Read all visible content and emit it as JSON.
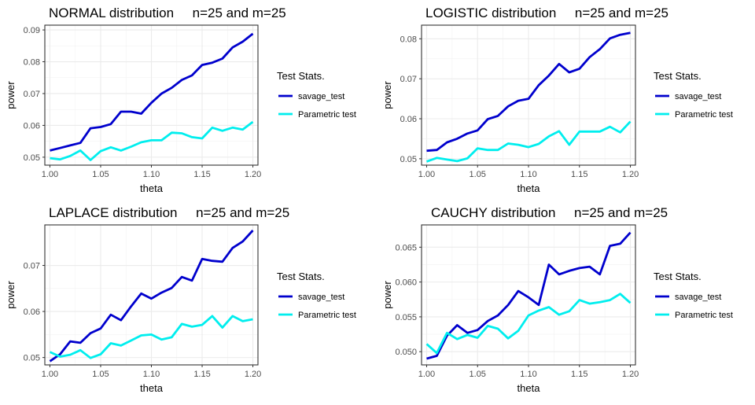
{
  "chart_data": [
    {
      "type": "line",
      "title": "NORMAL distribution     n=25 and m=25",
      "xlabel": "theta",
      "ylabel": "power",
      "xlim": [
        0.995,
        1.205
      ],
      "ylim": [
        0.0475,
        0.0915
      ],
      "xticks": [
        "1.00",
        "1.05",
        "1.10",
        "1.15",
        "1.20"
      ],
      "xtick_values": [
        1.0,
        1.05,
        1.1,
        1.15,
        1.2
      ],
      "yticks": [
        "0.05",
        "0.06",
        "0.07",
        "0.08",
        "0.09"
      ],
      "ytick_values": [
        0.05,
        0.06,
        0.07,
        0.08,
        0.09
      ],
      "grid": true,
      "legend_title": "Test Stats.",
      "legend_position": "right",
      "x": [
        1.0,
        1.01,
        1.02,
        1.03,
        1.04,
        1.05,
        1.06,
        1.07,
        1.08,
        1.09,
        1.1,
        1.11,
        1.12,
        1.13,
        1.14,
        1.15,
        1.16,
        1.17,
        1.18,
        1.19,
        1.2
      ],
      "series": [
        {
          "name": "savage_test",
          "color": "#0000CD",
          "values": [
            0.0521,
            0.0529,
            0.0537,
            0.0545,
            0.0591,
            0.0595,
            0.0604,
            0.0643,
            0.0643,
            0.0637,
            0.0671,
            0.07,
            0.0718,
            0.0743,
            0.0757,
            0.079,
            0.0797,
            0.081,
            0.0845,
            0.0863,
            0.0888
          ]
        },
        {
          "name": "Parametric test",
          "color": "#00EEEE",
          "values": [
            0.0497,
            0.0493,
            0.0504,
            0.0521,
            0.0491,
            0.0519,
            0.0531,
            0.0521,
            0.0533,
            0.0547,
            0.0553,
            0.0553,
            0.0577,
            0.0575,
            0.0563,
            0.0559,
            0.0593,
            0.0583,
            0.0593,
            0.0587,
            0.0611
          ]
        }
      ]
    },
    {
      "type": "line",
      "title": "LOGISTIC distribution     n=25 and m=25",
      "xlabel": "theta",
      "ylabel": "power",
      "xlim": [
        0.995,
        1.205
      ],
      "ylim": [
        0.0484,
        0.0834
      ],
      "xticks": [
        "1.00",
        "1.05",
        "1.10",
        "1.15",
        "1.20"
      ],
      "xtick_values": [
        1.0,
        1.05,
        1.1,
        1.15,
        1.2
      ],
      "yticks": [
        "0.05",
        "0.06",
        "0.07",
        "0.08"
      ],
      "ytick_values": [
        0.05,
        0.06,
        0.07,
        0.08
      ],
      "grid": true,
      "legend_title": "Test Stats.",
      "legend_position": "right",
      "x": [
        1.0,
        1.01,
        1.02,
        1.03,
        1.04,
        1.05,
        1.06,
        1.07,
        1.08,
        1.09,
        1.1,
        1.11,
        1.12,
        1.13,
        1.14,
        1.15,
        1.16,
        1.17,
        1.18,
        1.19,
        1.2
      ],
      "series": [
        {
          "name": "savage_test",
          "color": "#0000CD",
          "values": [
            0.052,
            0.0522,
            0.0541,
            0.055,
            0.0563,
            0.0571,
            0.0599,
            0.0607,
            0.0631,
            0.0645,
            0.065,
            0.0684,
            0.0708,
            0.0737,
            0.0716,
            0.0725,
            0.0754,
            0.0774,
            0.0801,
            0.081,
            0.0815
          ]
        },
        {
          "name": "Parametric test",
          "color": "#00EEEE",
          "values": [
            0.0493,
            0.0502,
            0.0498,
            0.0494,
            0.0501,
            0.0526,
            0.0522,
            0.0522,
            0.0538,
            0.0535,
            0.0529,
            0.0537,
            0.0556,
            0.0569,
            0.0535,
            0.0568,
            0.0568,
            0.0568,
            0.058,
            0.0566,
            0.0593
          ]
        }
      ]
    },
    {
      "type": "line",
      "title": "LAPLACE distribution     n=25 and m=25",
      "xlabel": "theta",
      "ylabel": "power",
      "xlim": [
        0.995,
        1.205
      ],
      "ylim": [
        0.0484,
        0.0788
      ],
      "xticks": [
        "1.00",
        "1.05",
        "1.10",
        "1.15",
        "1.20"
      ],
      "xtick_values": [
        1.0,
        1.05,
        1.1,
        1.15,
        1.2
      ],
      "yticks": [
        "0.05",
        "0.06",
        "0.07"
      ],
      "ytick_values": [
        0.05,
        0.06,
        0.07
      ],
      "grid": true,
      "legend_title": "Test Stats.",
      "legend_position": "right",
      "x": [
        1.0,
        1.01,
        1.02,
        1.03,
        1.04,
        1.05,
        1.06,
        1.07,
        1.08,
        1.09,
        1.1,
        1.11,
        1.12,
        1.13,
        1.14,
        1.15,
        1.16,
        1.17,
        1.18,
        1.19,
        1.2
      ],
      "series": [
        {
          "name": "savage_test",
          "color": "#0000CD",
          "values": [
            0.0492,
            0.0507,
            0.0535,
            0.0532,
            0.0553,
            0.0563,
            0.0593,
            0.0581,
            0.0611,
            0.0639,
            0.0628,
            0.0641,
            0.0651,
            0.0675,
            0.0667,
            0.0714,
            0.071,
            0.0708,
            0.0738,
            0.0752,
            0.0776
          ]
        },
        {
          "name": "Parametric test",
          "color": "#00EEEE",
          "values": [
            0.0512,
            0.0502,
            0.0506,
            0.0516,
            0.0499,
            0.0507,
            0.0531,
            0.0526,
            0.0537,
            0.0548,
            0.055,
            0.0539,
            0.0544,
            0.0573,
            0.0567,
            0.0571,
            0.059,
            0.0565,
            0.059,
            0.0579,
            0.0583
          ]
        }
      ]
    },
    {
      "type": "line",
      "title": "CAUCHY distribution     n=25 and m=25",
      "xlabel": "theta",
      "ylabel": "power",
      "xlim": [
        0.995,
        1.205
      ],
      "ylim": [
        0.0481,
        0.0682
      ],
      "xticks": [
        "1.00",
        "1.05",
        "1.10",
        "1.15",
        "1.20"
      ],
      "xtick_values": [
        1.0,
        1.05,
        1.1,
        1.15,
        1.2
      ],
      "yticks": [
        "0.050",
        "0.055",
        "0.060",
        "0.065"
      ],
      "ytick_values": [
        0.05,
        0.055,
        0.06,
        0.065
      ],
      "grid": true,
      "legend_title": "Test Stats.",
      "legend_position": "right",
      "x": [
        1.0,
        1.01,
        1.02,
        1.03,
        1.04,
        1.05,
        1.06,
        1.07,
        1.08,
        1.09,
        1.1,
        1.11,
        1.12,
        1.13,
        1.14,
        1.15,
        1.16,
        1.17,
        1.18,
        1.19,
        1.2
      ],
      "series": [
        {
          "name": "savage_test",
          "color": "#0000CD",
          "values": [
            0.049,
            0.0494,
            0.0523,
            0.0538,
            0.0527,
            0.0531,
            0.0544,
            0.0552,
            0.0567,
            0.0587,
            0.0578,
            0.0567,
            0.0625,
            0.0611,
            0.0616,
            0.062,
            0.0622,
            0.0611,
            0.0652,
            0.0655,
            0.0671
          ]
        },
        {
          "name": "Parametric test",
          "color": "#00EEEE",
          "values": [
            0.0511,
            0.0498,
            0.0527,
            0.0518,
            0.0524,
            0.052,
            0.0537,
            0.0533,
            0.0519,
            0.053,
            0.0552,
            0.0559,
            0.0564,
            0.0553,
            0.0558,
            0.0574,
            0.0569,
            0.0571,
            0.0574,
            0.0583,
            0.057
          ]
        }
      ]
    }
  ]
}
